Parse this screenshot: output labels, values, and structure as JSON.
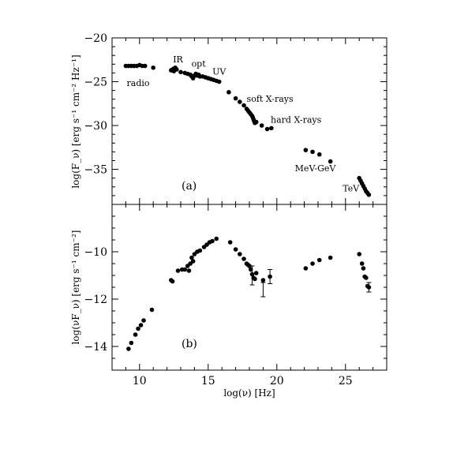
{
  "chart_data": [
    {
      "type": "scatter",
      "panel_label": "(a)",
      "ylabel": "log(F_ν) [erg s⁻¹ cm⁻² Hz⁻¹]",
      "xlim": [
        8,
        28
      ],
      "ylim": [
        -39,
        -20
      ],
      "x_ticks": [
        10,
        15,
        20,
        25
      ],
      "y_ticks": [
        -20,
        -25,
        -30,
        -35
      ],
      "y_tick_labels": [
        "−20",
        "−25",
        "−30",
        "−35"
      ],
      "annotations": [
        {
          "text": "radio",
          "x": 9.9,
          "y": -25.5
        },
        {
          "text": "IR",
          "x": 12.8,
          "y": -22.8
        },
        {
          "text": "opt",
          "x": 14.3,
          "y": -23.3
        },
        {
          "text": "UV",
          "x": 15.8,
          "y": -24.2
        },
        {
          "text": "soft X-rays",
          "x": 19.5,
          "y": -27.3
        },
        {
          "text": "hard X-rays",
          "x": 21.4,
          "y": -29.7
        },
        {
          "text": "MeV-GeV",
          "x": 22.8,
          "y": -35.2
        },
        {
          "text": "TeV",
          "x": 25.4,
          "y": -37.5
        }
      ],
      "series": [
        {
          "marker": "dot",
          "points": [
            [
              9.0,
              -23.2
            ],
            [
              9.2,
              -23.2
            ],
            [
              9.4,
              -23.2
            ],
            [
              9.6,
              -23.2
            ],
            [
              9.8,
              -23.2
            ],
            [
              10.0,
              -23.1
            ],
            [
              10.2,
              -23.2
            ],
            [
              10.4,
              -23.2
            ],
            [
              11.0,
              -23.4
            ],
            [
              12.3,
              -23.7
            ],
            [
              12.4,
              -23.6
            ],
            [
              12.5,
              -23.5
            ],
            [
              12.6,
              -23.4
            ],
            [
              12.7,
              -23.6
            ],
            [
              12.5,
              -23.8
            ],
            [
              13.0,
              -23.9
            ],
            [
              13.3,
              -24.0
            ],
            [
              13.5,
              -24.1
            ],
            [
              13.7,
              -24.2
            ],
            [
              13.8,
              -24.4
            ],
            [
              13.9,
              -24.6
            ],
            [
              14.0,
              -24.3
            ],
            [
              14.1,
              -24.1
            ],
            [
              14.2,
              -24.3
            ],
            [
              14.3,
              -24.2
            ],
            [
              14.4,
              -24.4
            ],
            [
              14.6,
              -24.4
            ],
            [
              14.8,
              -24.5
            ],
            [
              15.0,
              -24.6
            ],
            [
              15.2,
              -24.7
            ],
            [
              15.4,
              -24.8
            ],
            [
              15.6,
              -24.9
            ],
            [
              15.8,
              -25.0
            ],
            [
              16.5,
              -26.2
            ],
            [
              17.0,
              -26.9
            ],
            [
              17.3,
              -27.3
            ],
            [
              17.6,
              -27.7
            ],
            [
              17.8,
              -28.1
            ],
            [
              17.9,
              -28.3
            ],
            [
              18.0,
              -28.5
            ],
            [
              18.1,
              -28.7
            ],
            [
              18.2,
              -28.9
            ],
            [
              18.25,
              -29.1
            ],
            [
              18.3,
              -29.3
            ],
            [
              18.35,
              -29.5
            ],
            [
              18.4,
              -29.7
            ],
            [
              18.5,
              -29.6
            ],
            [
              18.9,
              -30.0
            ],
            [
              19.3,
              -30.4
            ],
            [
              19.6,
              -30.3
            ],
            [
              22.1,
              -32.8
            ],
            [
              22.6,
              -33.0
            ],
            [
              23.1,
              -33.3
            ],
            [
              23.9,
              -34.1
            ],
            [
              26.0,
              -36.0
            ],
            [
              26.1,
              -36.3
            ],
            [
              26.2,
              -36.6
            ],
            [
              26.3,
              -36.9
            ],
            [
              26.4,
              -37.2
            ],
            [
              26.5,
              -37.5
            ],
            [
              26.6,
              -37.7
            ],
            [
              26.7,
              -37.9
            ]
          ]
        }
      ]
    },
    {
      "type": "scatter",
      "panel_label": "(b)",
      "xlabel": "log(ν) [Hz]",
      "ylabel": "log(νF_ν) [erg s⁻¹ cm⁻²]",
      "xlim": [
        8,
        28
      ],
      "ylim": [
        -15,
        -8
      ],
      "x_ticks": [
        10,
        15,
        20,
        25
      ],
      "y_ticks": [
        -10,
        -12,
        -14
      ],
      "y_tick_labels": [
        "−10",
        "−12",
        "−14"
      ],
      "series": [
        {
          "marker": "dot",
          "points": [
            [
              9.2,
              -14.1
            ],
            [
              9.4,
              -13.85
            ],
            [
              9.7,
              -13.5
            ],
            [
              9.9,
              -13.25
            ],
            [
              10.1,
              -13.1
            ],
            [
              10.3,
              -12.9
            ],
            [
              10.9,
              -12.45
            ],
            [
              12.3,
              -11.2
            ],
            [
              12.4,
              -11.25
            ],
            [
              12.8,
              -10.8
            ],
            [
              13.1,
              -10.75
            ],
            [
              13.3,
              -10.75
            ],
            [
              13.5,
              -10.6
            ],
            [
              13.6,
              -10.8
            ],
            [
              13.7,
              -10.5
            ],
            [
              13.8,
              -10.25
            ],
            [
              13.9,
              -10.4
            ],
            [
              14.0,
              -10.1
            ],
            [
              14.2,
              -10.0
            ],
            [
              14.4,
              -9.95
            ],
            [
              14.7,
              -9.8
            ],
            [
              14.9,
              -9.7
            ],
            [
              15.1,
              -9.6
            ],
            [
              15.3,
              -9.55
            ],
            [
              15.6,
              -9.45
            ],
            [
              16.6,
              -9.6
            ],
            [
              17.0,
              -9.9
            ],
            [
              17.3,
              -10.1
            ],
            [
              17.6,
              -10.3
            ],
            [
              17.8,
              -10.5
            ],
            [
              17.9,
              -10.55
            ],
            [
              18.0,
              -10.6
            ],
            [
              18.1,
              -10.75
            ],
            [
              18.2,
              -10.95
            ],
            [
              18.3,
              -11.1
            ],
            [
              18.4,
              -11.15
            ],
            [
              18.5,
              -10.9
            ],
            [
              19.0,
              -11.2
            ],
            [
              19.5,
              -11.05
            ],
            [
              22.1,
              -10.7
            ],
            [
              22.6,
              -10.5
            ],
            [
              23.1,
              -10.35
            ],
            [
              23.9,
              -10.25
            ],
            [
              26.0,
              -10.1
            ],
            [
              26.2,
              -10.5
            ],
            [
              26.3,
              -10.7
            ],
            [
              26.4,
              -11.05
            ],
            [
              26.5,
              -11.1
            ],
            [
              26.6,
              -11.45
            ],
            [
              26.7,
              -11.5
            ]
          ],
          "error_bars": [
            {
              "x": 18.2,
              "y": -11.0,
              "yerr": 0.4
            },
            {
              "x": 19.0,
              "y": -11.6,
              "yerr": 0.3
            },
            {
              "x": 19.5,
              "y": -11.05,
              "yerr": 0.3
            },
            {
              "x": 26.7,
              "y": -11.5,
              "yerr": 0.2
            }
          ]
        }
      ]
    }
  ]
}
